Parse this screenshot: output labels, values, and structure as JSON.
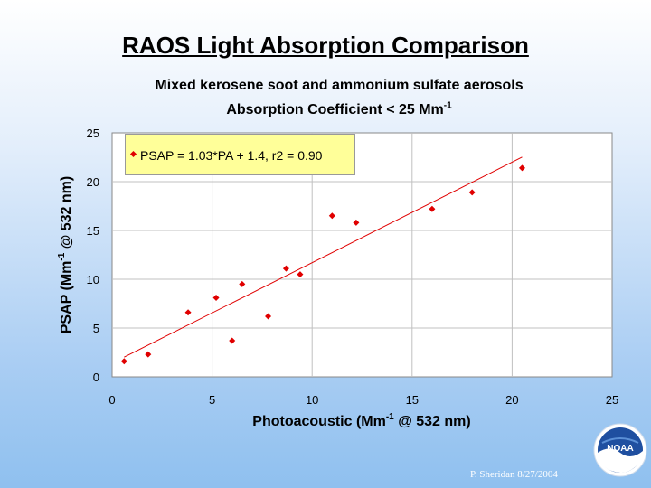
{
  "slide": {
    "title": "RAOS Light Absorption Comparison",
    "subtitle_line1": "Mixed kerosene soot and ammonium sulfate aerosols",
    "subtitle_line2_prefix": "Absorption Coefficient < 25 Mm",
    "subtitle_line2_sup": "-1",
    "credit": "P. Sheridan  8/27/2004",
    "logo_text": "NOAA"
  },
  "chart_data": {
    "type": "scatter",
    "xlabel_prefix": "Photoacoustic (Mm",
    "xlabel_sup": "-1",
    "xlabel_suffix": " @ 532 nm)",
    "ylabel_prefix": "PSAP (Mm",
    "ylabel_sup": "-1",
    "ylabel_suffix": " @ 532 nm)",
    "xlim": [
      0,
      25
    ],
    "ylim": [
      0,
      25
    ],
    "xticks": [
      0,
      5,
      10,
      15,
      20,
      25
    ],
    "yticks": [
      0,
      5,
      10,
      15,
      20,
      25
    ],
    "grid": true,
    "legend_position": "top-left",
    "series": [
      {
        "name": "PSAP = 1.03*PA + 1.4, r2 = 0.90",
        "color": "#e00000",
        "points": [
          [
            0.6,
            1.6
          ],
          [
            1.8,
            2.3
          ],
          [
            3.8,
            6.6
          ],
          [
            5.2,
            8.1
          ],
          [
            6.0,
            3.7
          ],
          [
            6.5,
            9.5
          ],
          [
            7.8,
            6.2
          ],
          [
            8.7,
            11.1
          ],
          [
            9.4,
            10.5
          ],
          [
            11.0,
            16.5
          ],
          [
            12.2,
            15.8
          ],
          [
            16.0,
            17.2
          ],
          [
            18.0,
            18.9
          ],
          [
            20.5,
            21.4
          ]
        ]
      }
    ],
    "fit": {
      "slope": 1.03,
      "intercept": 1.4,
      "x_range": [
        0.6,
        20.5
      ],
      "color": "#e00000"
    }
  },
  "colors": {
    "marker": "#e00000",
    "legend_bg": "#ffff99",
    "grid": "#c0c0c0"
  }
}
